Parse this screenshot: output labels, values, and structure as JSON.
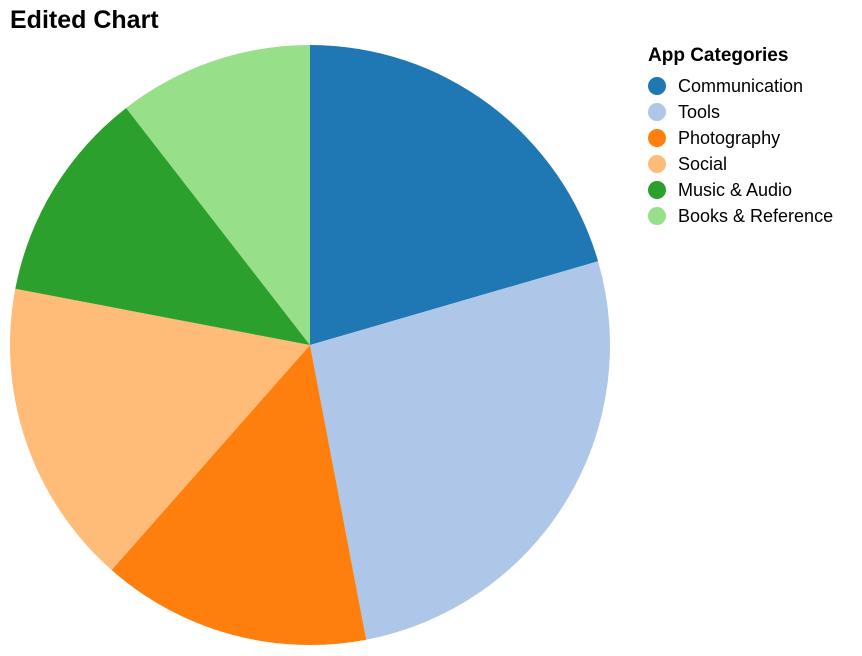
{
  "chart_data": {
    "type": "pie",
    "title": "Edited Chart",
    "legend_title": "App Categories",
    "legend_position": "top-right",
    "categories": [
      "Communication",
      "Tools",
      "Photography",
      "Social",
      "Music & Audio",
      "Books & Reference"
    ],
    "values": [
      20.5,
      26.5,
      14.5,
      16.5,
      11.5,
      10.5
    ],
    "colors": [
      "#1f77b4",
      "#aec7e8",
      "#ff7f0e",
      "#ffbb78",
      "#2ca02c",
      "#98df8a"
    ]
  }
}
